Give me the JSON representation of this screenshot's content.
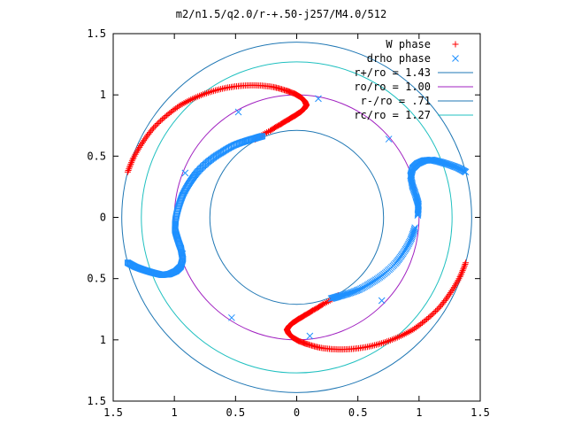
{
  "chart_data": {
    "type": "scatter",
    "title": "m2/n1.5/q2.0/r-+.50-j257/M4.0/512",
    "xlabel": "",
    "ylabel": "",
    "xlim": [
      -1.5,
      1.5
    ],
    "ylim": [
      -1.5,
      1.5
    ],
    "x_ticks": [
      -1.5,
      -1,
      -0.5,
      0,
      0.5,
      1,
      1.5
    ],
    "x_tick_labels": [
      "1.5",
      "1",
      "0.5",
      "0",
      "0.5",
      "1",
      "1.5"
    ],
    "y_ticks": [
      1.5,
      1,
      0.5,
      0,
      -0.5,
      -1,
      -1.5
    ],
    "y_tick_labels": [
      "1.5",
      "1",
      "0.5",
      "0",
      "0.5",
      "1",
      "1.5"
    ],
    "grid": false,
    "legend_position": "top-right",
    "series": [
      {
        "name": "W phase",
        "kind": "points",
        "marker": "plus",
        "color": "#ff0000",
        "arms": [
          {
            "r": [
              1.43,
              1.42,
              1.4,
              1.38,
              1.35,
              1.32,
              1.28,
              1.24,
              1.2,
              1.16,
              1.12,
              1.08,
              1.04,
              1.01,
              0.98,
              0.95,
              0.92,
              0.89,
              0.86,
              0.83,
              0.8,
              0.77,
              0.74,
              0.72
            ],
            "theta_deg": [
              165,
              160,
              154,
              148,
              142,
              136,
              130,
              124,
              118,
              112,
              106,
              100,
              95,
              91,
              88,
              86,
              85,
              86,
              88,
              91,
              95,
              100,
              107,
              118
            ]
          },
          {
            "r": [
              1.43,
              1.42,
              1.4,
              1.38,
              1.35,
              1.32,
              1.28,
              1.24,
              1.2,
              1.16,
              1.12,
              1.08,
              1.04,
              1.01,
              0.98,
              0.95,
              0.92,
              0.89,
              0.86,
              0.83,
              0.8,
              0.77,
              0.74,
              0.72
            ],
            "theta_deg": [
              345,
              340,
              334,
              328,
              322,
              316,
              310,
              304,
              298,
              292,
              286,
              280,
              275,
              271,
              268,
              266,
              265,
              266,
              268,
              271,
              275,
              280,
              287,
              298
            ]
          }
        ]
      },
      {
        "name": "drho phase",
        "kind": "points",
        "marker": "cross",
        "color": "#1e90ff",
        "arms": [
          {
            "r": [
              1.43,
              1.38,
              1.32,
              1.26,
              1.2,
              1.14,
              1.08,
              1.03,
              0.99,
              0.98,
              0.99,
              1.0,
              0.99,
              0.97,
              0.95,
              0.92,
              0.89,
              0.85,
              0.81,
              0.78,
              0.75,
              0.73,
              0.72
            ],
            "theta_deg": [
              15,
              17,
              19,
              21,
              23,
              24,
              24,
              23,
              20,
              15,
              10,
              6,
              1,
              355,
              349,
              342,
              335,
              327,
              319,
              311,
              304,
              298,
              293
            ]
          }
        ]
      },
      {
        "name": "",
        "kind": "points",
        "marker": "square",
        "color": "#1e90ff",
        "arms": [
          {
            "r": [
              1.43,
              1.38,
              1.32,
              1.26,
              1.2,
              1.14,
              1.08,
              1.03,
              0.99,
              0.98,
              0.99,
              1.0,
              0.99,
              0.97,
              0.95,
              0.92,
              0.89,
              0.85,
              0.81,
              0.78,
              0.75,
              0.73,
              0.72
            ],
            "theta_deg": [
              195,
              197,
              199,
              201,
              203,
              204,
              204,
              203,
              200,
              195,
              190,
              186,
              181,
              175,
              169,
              162,
              155,
              147,
              139,
              131,
              124,
              118,
              113
            ]
          }
        ]
      },
      {
        "name": "r+/ro = 1.43",
        "kind": "circle",
        "radius": 1.43,
        "color": "#1f77b4"
      },
      {
        "name": "ro/ro = 1.00",
        "kind": "circle",
        "radius": 1.0,
        "color": "#a020c0"
      },
      {
        "name": "r-/ro = .71",
        "kind": "circle",
        "radius": 0.71,
        "color": "#1f77b4"
      },
      {
        "name": "rc/ro = 1.27",
        "kind": "circle",
        "radius": 1.27,
        "color": "#20c0c0"
      }
    ]
  }
}
